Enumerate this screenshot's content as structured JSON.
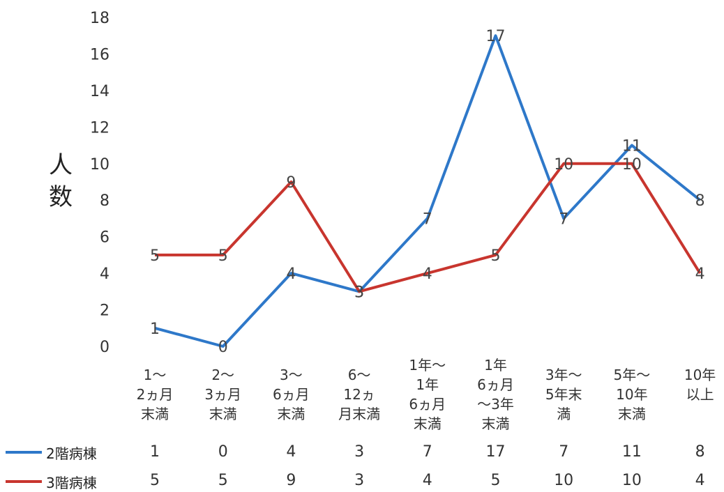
{
  "chart_data": {
    "type": "line",
    "ylabel": "人数",
    "ylim": [
      0,
      18
    ],
    "yticks": [
      0,
      2,
      4,
      6,
      8,
      10,
      12,
      14,
      16,
      18
    ],
    "categories": [
      "1〜\n2ヵ月\n末満",
      "2〜\n3ヵ月\n末満",
      "3〜\n6ヵ月\n末満",
      "6〜\n12ヵ\n月末満",
      "1年〜\n1年\n6ヵ月\n末満",
      "1年\n6ヵ月\n〜3年\n末満",
      "3年〜\n5年末\n満",
      "5年〜\n10年\n末満",
      "10年\n以上"
    ],
    "series": [
      {
        "name": "2階病棟",
        "color": "#2e78c9",
        "values": [
          1,
          0,
          4,
          3,
          7,
          17,
          7,
          11,
          8
        ]
      },
      {
        "name": "3階病棟",
        "color": "#c8352e",
        "values": [
          5,
          5,
          9,
          3,
          4,
          5,
          10,
          10,
          4
        ]
      }
    ],
    "grid": false,
    "legend": "bottom-left data table"
  }
}
